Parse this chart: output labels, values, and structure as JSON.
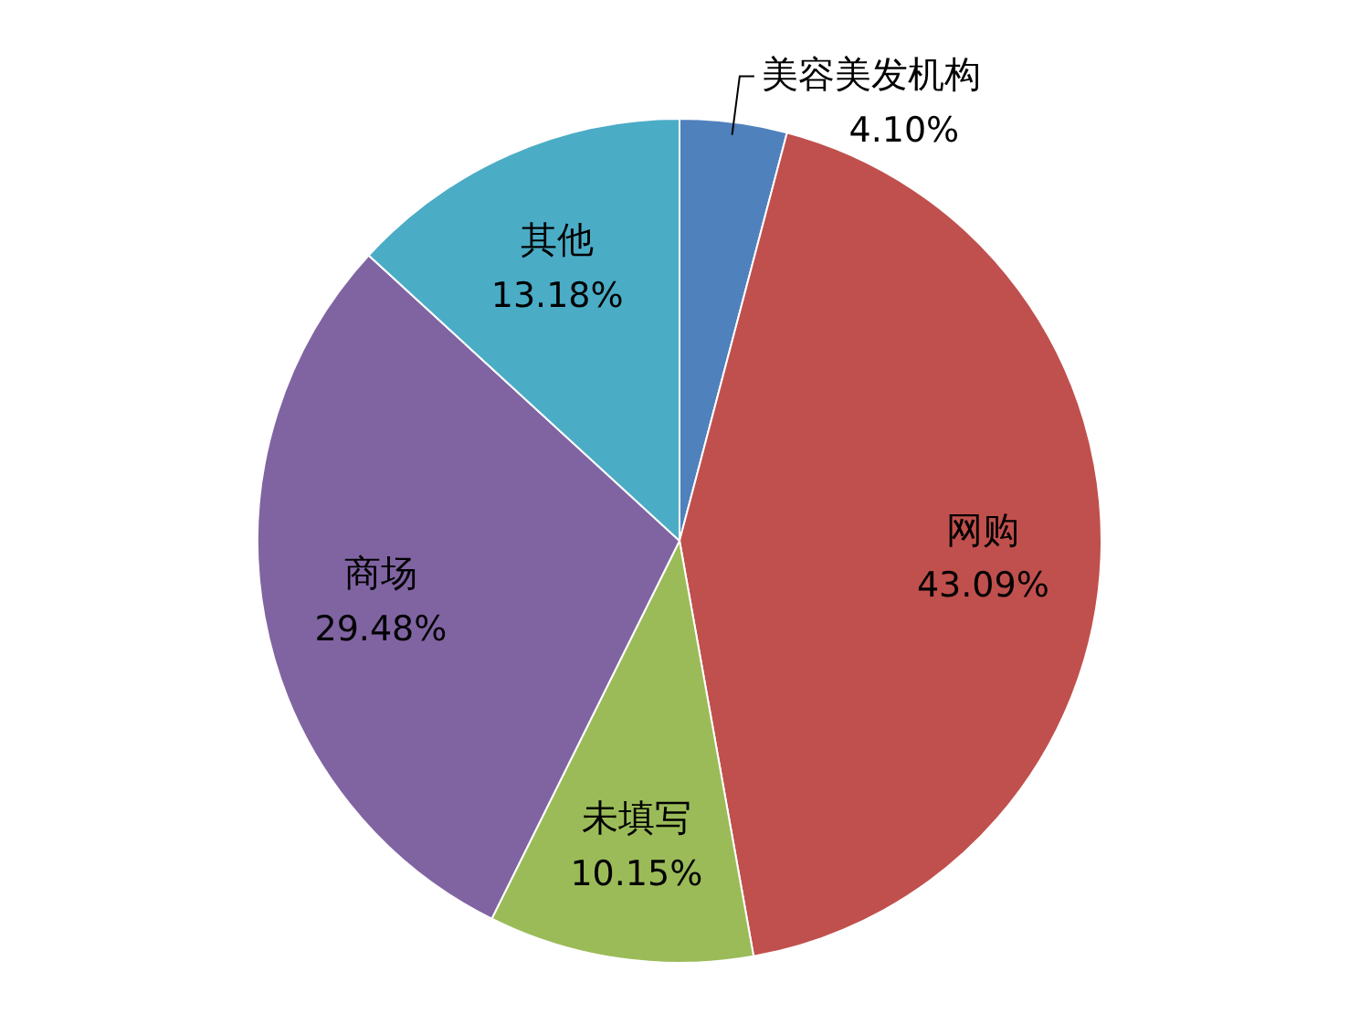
{
  "chart_data": {
    "type": "pie",
    "categories": [
      "美容美发机构",
      "网购",
      "未填写",
      "商场",
      "其他"
    ],
    "values": [
      4.1,
      43.09,
      10.15,
      29.48,
      13.18
    ],
    "colors": [
      "#4f81bd",
      "#c0504d",
      "#9bbb59",
      "#8064a2",
      "#4bacc6"
    ],
    "value_labels": [
      "4.10%",
      "43.09%",
      "10.15%",
      "29.48%",
      "13.18%"
    ],
    "legend": false
  }
}
